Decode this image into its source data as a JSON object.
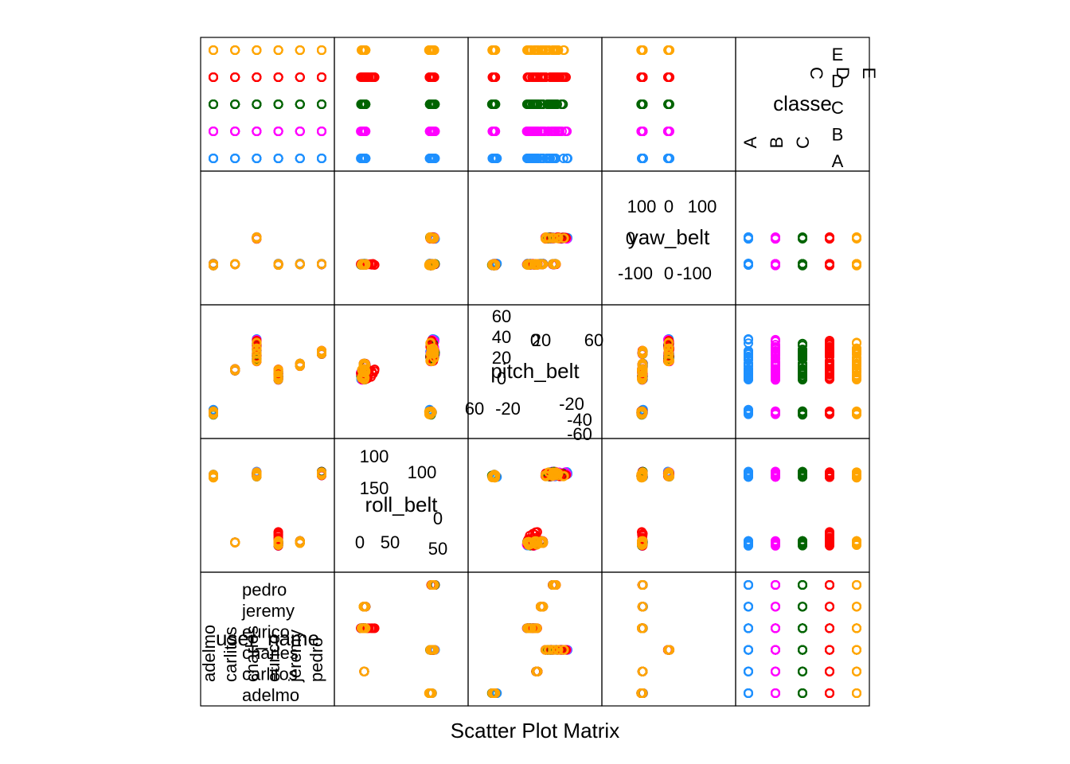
{
  "chart_data": {
    "type": "scatter",
    "title": "Scatter Plot Matrix",
    "variables": [
      "user_name",
      "roll_belt",
      "pitch_belt",
      "yaw_belt",
      "classe"
    ],
    "group_by": "classe",
    "colors": {
      "A": "#1e90ff",
      "B": "#ff00ff",
      "C": "#006400",
      "D": "#ff0000",
      "E": "#ffa500"
    },
    "user_names": [
      "adelmo",
      "carlitos",
      "charles",
      "eurico",
      "jeremy",
      "pedro"
    ],
    "classes": [
      "A",
      "B",
      "C",
      "D",
      "E"
    ],
    "axes": {
      "roll_belt": {
        "min": -29,
        "max": 163,
        "ticks_upper": [
          100,
          150
        ],
        "ticks_lower": [
          0,
          50
        ],
        "ticks_upper_inner": [
          100
        ],
        "ticks_lower_inner": [
          0,
          50
        ]
      },
      "pitch_belt": {
        "min": -56,
        "max": 62,
        "ticks_upper": [
          20,
          40,
          60
        ],
        "ticks_lower": [
          -60,
          -20
        ],
        "ticks_upper_inner": [
          0,
          20,
          60
        ],
        "ticks_lower_inner": [
          -20,
          -40,
          -60
        ],
        "labels_inner": [
          "0",
          "-20",
          "-40",
          "-60",
          "0",
          "20",
          "40",
          "60",
          "-60",
          "-20",
          "0",
          "20",
          "60"
        ]
      },
      "yaw_belt": {
        "min": -180,
        "max": 180,
        "ticks_upper": [
          0,
          100
        ],
        "ticks_lower": [
          -100,
          0
        ],
        "labels_inner": [
          "100",
          "0",
          "100",
          "0",
          "-100",
          "0",
          "-100"
        ]
      }
    },
    "diagonal_labels": {
      "user_name": {
        "name": "user_name",
        "ticks": [
          "adelmo",
          "carlitos",
          "charles",
          "eurico",
          "jeremy",
          "pedro"
        ],
        "rotated_ticks": [
          "adelmo",
          "carlitos",
          "charles",
          "eurico",
          "jeremy",
          "pedro"
        ]
      },
      "roll_belt": {
        "name": "roll_belt",
        "left_ticks": [
          "0",
          "50"
        ],
        "right_ticks": [
          "100",
          "150"
        ],
        "upper_ticks": [
          "100"
        ],
        "lower_ticks": [
          "0",
          "50"
        ]
      },
      "pitch_belt": {
        "name": "pitch_belt",
        "tick_labels": [
          "60",
          "40",
          "20",
          "0",
          "20",
          "60",
          "0",
          "-20",
          "-40",
          "-60",
          "60",
          "-20"
        ]
      },
      "yaw_belt": {
        "name": "yaw_belt",
        "tick_labels": [
          "100",
          "0",
          "100",
          "0",
          "-100",
          "0",
          "-100"
        ]
      },
      "classe": {
        "name": "classe",
        "right_ticks": [
          "E",
          "D",
          "C",
          "B",
          "A"
        ],
        "top_ticks": [
          "C",
          "D",
          "E"
        ],
        "bottom_ticks": [
          "A",
          "B",
          "C"
        ]
      }
    },
    "groups": {
      "A": {
        "users": {
          "adelmo": {
            "roll": [
              117,
              122
            ],
            "pitch": [
              -44,
              -38
            ],
            "yaw": [
              -90,
              -85
            ]
          },
          "carlitos": {
            "roll": [
              1,
              1.5
            ],
            "pitch": [
              4,
              6
            ],
            "yaw": [
              -88,
              -86
            ]
          },
          "charles": {
            "roll": [
              118,
              128
            ],
            "pitch": [
              15,
              42
            ],
            "yaw": [
              -3,
              3
            ]
          },
          "eurico": {
            "roll": [
              -5,
              4
            ],
            "pitch": [
              -6,
              4
            ],
            "yaw": [
              -90,
              -85
            ]
          },
          "jeremy": {
            "roll": [
              0,
              4
            ],
            "pitch": [
              9,
              12
            ],
            "yaw": [
              -88,
              -85
            ]
          },
          "pedro": {
            "roll": [
              120,
              127
            ],
            "pitch": [
              22,
              26
            ],
            "yaw": [
              -88,
              -85
            ]
          }
        }
      },
      "B": {
        "users": {
          "adelmo": {
            "roll": [
              117,
              121
            ],
            "pitch": [
              -44,
              -40
            ],
            "yaw": [
              -92,
              -86
            ]
          },
          "carlitos": {
            "roll": [
              1,
              1.5
            ],
            "pitch": [
              4,
              6
            ],
            "yaw": [
              -88,
              -86
            ]
          },
          "charles": {
            "roll": [
              118,
              126
            ],
            "pitch": [
              14,
              40
            ],
            "yaw": [
              -3,
              3
            ]
          },
          "eurico": {
            "roll": [
              -5,
              4
            ],
            "pitch": [
              -6,
              4
            ],
            "yaw": [
              -90,
              -86
            ]
          },
          "jeremy": {
            "roll": [
              0,
              4
            ],
            "pitch": [
              9,
              12
            ],
            "yaw": [
              -88,
              -86
            ]
          },
          "pedro": {
            "roll": [
              120,
              127
            ],
            "pitch": [
              22,
              26
            ],
            "yaw": [
              -88,
              -86
            ]
          }
        }
      },
      "C": {
        "users": {
          "adelmo": {
            "roll": [
              117,
              120
            ],
            "pitch": [
              -44,
              -40
            ],
            "yaw": [
              -92,
              -86
            ]
          },
          "carlitos": {
            "roll": [
              1,
              1.5
            ],
            "pitch": [
              4,
              6
            ],
            "yaw": [
              -88,
              -86
            ]
          },
          "charles": {
            "roll": [
              118,
              125
            ],
            "pitch": [
              14,
              38
            ],
            "yaw": [
              -3,
              3
            ]
          },
          "eurico": {
            "roll": [
              -5,
              4
            ],
            "pitch": [
              -6,
              4
            ],
            "yaw": [
              -90,
              -86
            ]
          },
          "jeremy": {
            "roll": [
              0,
              4
            ],
            "pitch": [
              9,
              12
            ],
            "yaw": [
              -88,
              -86
            ]
          },
          "pedro": {
            "roll": [
              120,
              127
            ],
            "pitch": [
              22,
              26
            ],
            "yaw": [
              -88,
              -86
            ]
          }
        }
      },
      "D": {
        "users": {
          "adelmo": {
            "roll": [
              117,
              120
            ],
            "pitch": [
              -44,
              -40
            ],
            "yaw": [
              -92,
              -86
            ]
          },
          "carlitos": {
            "roll": [
              1,
              1.5
            ],
            "pitch": [
              4,
              6
            ],
            "yaw": [
              -88,
              -86
            ]
          },
          "charles": {
            "roll": [
              118,
              125
            ],
            "pitch": [
              14,
              38
            ],
            "yaw": [
              -3,
              3
            ]
          },
          "eurico": {
            "roll": [
              -5,
              22
            ],
            "pitch": [
              -6,
              6
            ],
            "yaw": [
              -90,
              -86
            ]
          },
          "jeremy": {
            "roll": [
              0,
              4
            ],
            "pitch": [
              9,
              12
            ],
            "yaw": [
              -88,
              -86
            ]
          },
          "pedro": {
            "roll": [
              120,
              127
            ],
            "pitch": [
              22,
              26
            ],
            "yaw": [
              -88,
              -86
            ]
          }
        }
      },
      "E": {
        "users": {
          "adelmo": {
            "roll": [
              116,
              122
            ],
            "pitch": [
              -44,
              -40
            ],
            "yaw": [
              -92,
              -86
            ]
          },
          "carlitos": {
            "roll": [
              1,
              1.5
            ],
            "pitch": [
              4,
              6
            ],
            "yaw": [
              -88,
              -86
            ]
          },
          "charles": {
            "roll": [
              118,
              126
            ],
            "pitch": [
              14,
              38
            ],
            "yaw": [
              -3,
              3
            ]
          },
          "eurico": {
            "roll": [
              -5,
              4
            ],
            "pitch": [
              -6,
              6
            ],
            "yaw": [
              -90,
              -86
            ]
          },
          "jeremy": {
            "roll": [
              0,
              4
            ],
            "pitch": [
              9,
              12
            ],
            "yaw": [
              -88,
              -86
            ]
          },
          "pedro": {
            "roll": [
              120,
              127
            ],
            "pitch": [
              22,
              26
            ],
            "yaw": [
              -88,
              -86
            ]
          }
        }
      }
    }
  }
}
